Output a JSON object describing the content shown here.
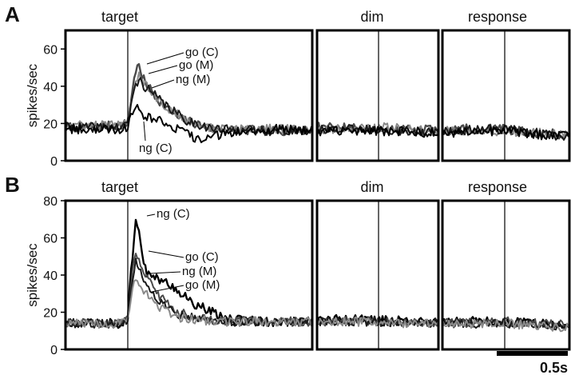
{
  "chart_data": [
    {
      "type": "line",
      "panel_label": "A",
      "ylabel": "spikes/sec",
      "ylim": [
        0,
        70
      ],
      "yticks": [
        0,
        20,
        40,
        60
      ],
      "epochs": [
        "target",
        "dim",
        "response"
      ],
      "x_unit": "s",
      "series": [
        {
          "name": "go (C)",
          "color": "#4a4a4a",
          "target": {
            "x": [
              -0.3,
              -0.05,
              0.0,
              0.04,
              0.07,
              0.1,
              0.2,
              0.35,
              0.6,
              1.0,
              1.5
            ],
            "y": [
              18,
              19,
              20,
              40,
              53,
              45,
              34,
              23,
              17,
              16,
              17
            ]
          },
          "dim": {
            "x": [
              -0.3,
              0.0,
              0.2,
              0.45
            ],
            "y": [
              18,
              17,
              17,
              16
            ]
          },
          "response": {
            "x": [
              -0.45,
              0.0,
              0.2,
              0.45
            ],
            "y": [
              17,
              17,
              15,
              14
            ]
          }
        },
        {
          "name": "go (M)",
          "color": "#8a8a8a",
          "target": {
            "x": [
              -0.3,
              -0.05,
              0.0,
              0.04,
              0.08,
              0.12,
              0.25,
              0.4,
              0.6,
              1.0,
              1.5
            ],
            "y": [
              19,
              19,
              20,
              38,
              47,
              42,
              30,
              22,
              17,
              17,
              17
            ]
          },
          "dim": {
            "x": [
              -0.3,
              0.0,
              0.2,
              0.45
            ],
            "y": [
              17,
              18,
              17,
              16
            ]
          },
          "response": {
            "x": [
              -0.45,
              0.0,
              0.2,
              0.45
            ],
            "y": [
              16,
              16,
              15,
              14
            ]
          }
        },
        {
          "name": "ng (M)",
          "color": "#1a1a1a",
          "target": {
            "x": [
              -0.3,
              -0.05,
              0.0,
              0.04,
              0.08,
              0.12,
              0.25,
              0.4,
              0.6,
              1.0,
              1.5
            ],
            "y": [
              18,
              18,
              19,
              36,
              44,
              40,
              31,
              22,
              17,
              16,
              16
            ]
          },
          "dim": {
            "x": [
              -0.3,
              0.0,
              0.2,
              0.45
            ],
            "y": [
              17,
              17,
              16,
              15
            ]
          },
          "response": {
            "x": [
              -0.45,
              0.0,
              0.2,
              0.45
            ],
            "y": [
              16,
              17,
              15,
              13
            ]
          }
        },
        {
          "name": "ng (C)",
          "color": "#000000",
          "target": {
            "x": [
              -0.3,
              -0.05,
              0.0,
              0.04,
              0.07,
              0.1,
              0.25,
              0.4,
              0.5,
              0.7,
              1.0,
              1.5
            ],
            "y": [
              17,
              17,
              18,
              28,
              32,
              25,
              21,
              15,
              11,
              15,
              17,
              16
            ]
          },
          "dim": {
            "x": [
              -0.3,
              0.0,
              0.2,
              0.45
            ],
            "y": [
              16,
              16,
              16,
              14
            ]
          },
          "response": {
            "x": [
              -0.45,
              0.0,
              0.2,
              0.45
            ],
            "y": [
              15,
              16,
              14,
              13
            ]
          }
        }
      ]
    },
    {
      "type": "line",
      "panel_label": "B",
      "ylabel": "spikes/sec",
      "ylim": [
        0,
        80
      ],
      "yticks": [
        0,
        20,
        40,
        60,
        80
      ],
      "epochs": [
        "target",
        "dim",
        "response"
      ],
      "x_unit": "s",
      "scale_bar": "0.5s",
      "series": [
        {
          "name": "ng (C)",
          "color": "#000000",
          "target": {
            "x": [
              -0.3,
              -0.05,
              0.0,
              0.03,
              0.06,
              0.09,
              0.13,
              0.2,
              0.3,
              0.45,
              0.7,
              1.0,
              1.5
            ],
            "y": [
              14,
              14,
              15,
              45,
              72,
              58,
              42,
              38,
              35,
              25,
              16,
              15,
              15
            ]
          },
          "dim": {
            "x": [
              -0.3,
              0.0,
              0.2,
              0.45
            ],
            "y": [
              16,
              16,
              15,
              14
            ]
          },
          "response": {
            "x": [
              -0.45,
              0.0,
              0.2,
              0.45
            ],
            "y": [
              15,
              15,
              14,
              13
            ]
          }
        },
        {
          "name": "go (C)",
          "color": "#4a4a4a",
          "target": {
            "x": [
              -0.3,
              -0.05,
              0.0,
              0.03,
              0.06,
              0.1,
              0.2,
              0.35,
              0.6,
              1.0,
              1.5
            ],
            "y": [
              14,
              14,
              15,
              40,
              52,
              45,
              30,
              20,
              15,
              15,
              15
            ]
          },
          "dim": {
            "x": [
              -0.3,
              0.0,
              0.2,
              0.45
            ],
            "y": [
              15,
              15,
              15,
              14
            ]
          },
          "response": {
            "x": [
              -0.45,
              0.0,
              0.2,
              0.45
            ],
            "y": [
              14,
              15,
              14,
              13
            ]
          }
        },
        {
          "name": "ng (M)",
          "color": "#1a1a1a",
          "target": {
            "x": [
              -0.3,
              -0.05,
              0.0,
              0.03,
              0.06,
              0.1,
              0.2,
              0.35,
              0.6,
              1.0,
              1.5
            ],
            "y": [
              14,
              14,
              15,
              36,
              48,
              40,
              28,
              19,
              15,
              15,
              15
            ]
          },
          "dim": {
            "x": [
              -0.3,
              0.0,
              0.2,
              0.45
            ],
            "y": [
              15,
              15,
              14,
              14
            ]
          },
          "response": {
            "x": [
              -0.45,
              0.0,
              0.2,
              0.45
            ],
            "y": [
              14,
              14,
              14,
              12
            ]
          }
        },
        {
          "name": "go (M)",
          "color": "#8a8a8a",
          "target": {
            "x": [
              -0.3,
              -0.05,
              0.0,
              0.03,
              0.06,
              0.1,
              0.2,
              0.35,
              0.6,
              1.0,
              1.5
            ],
            "y": [
              14,
              14,
              15,
              30,
              40,
              33,
              24,
              17,
              15,
              15,
              15
            ]
          },
          "dim": {
            "x": [
              -0.3,
              0.0,
              0.2,
              0.45
            ],
            "y": [
              15,
              15,
              14,
              14
            ]
          },
          "response": {
            "x": [
              -0.45,
              0.0,
              0.2,
              0.45
            ],
            "y": [
              14,
              14,
              13,
              12
            ]
          }
        }
      ]
    }
  ]
}
